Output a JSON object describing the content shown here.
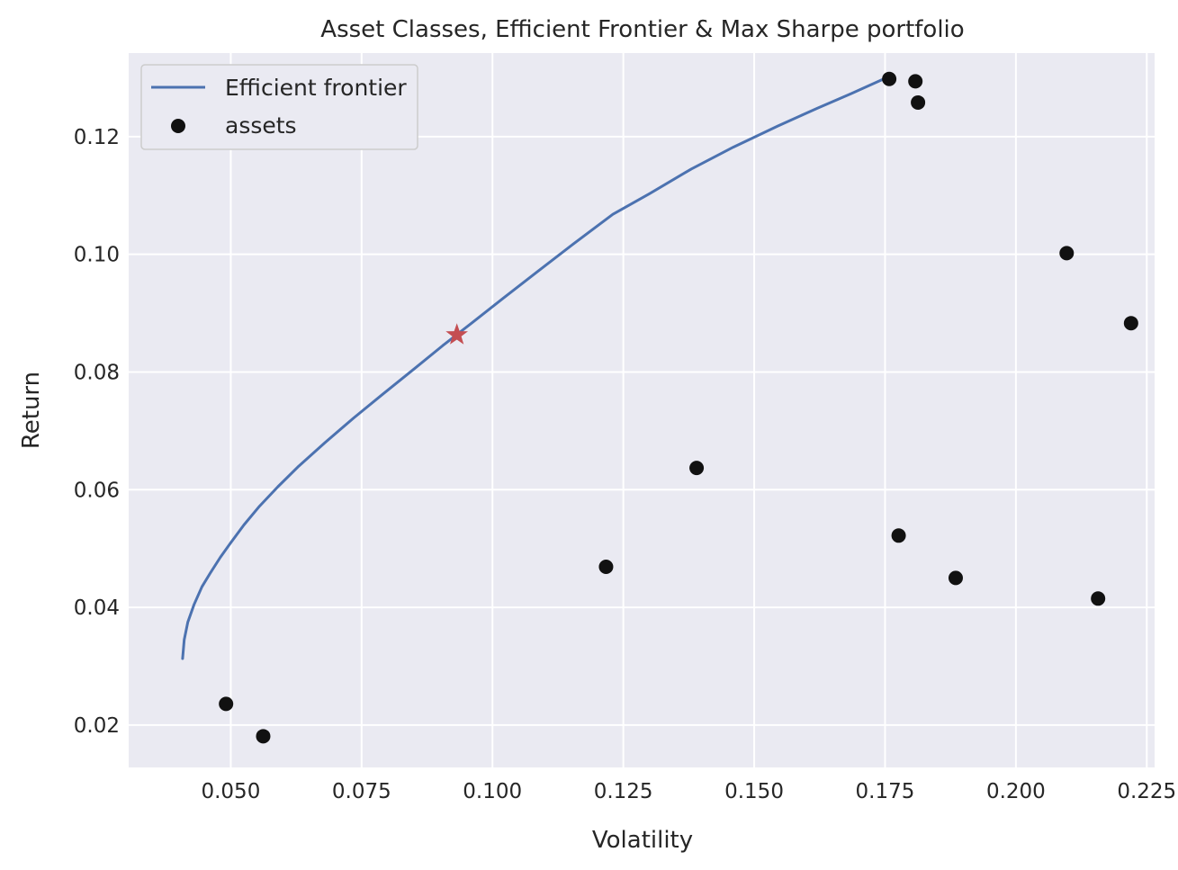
{
  "chart_data": {
    "type": "scatter",
    "title": "Asset Classes, Efficient Frontier & Max Sharpe portfolio",
    "xlabel": "Volatility",
    "ylabel": "Return",
    "xlim": [
      0.0305,
      0.2265
    ],
    "ylim": [
      0.0128,
      0.1342
    ],
    "xticks": [
      0.05,
      0.075,
      0.1,
      0.125,
      0.15,
      0.175,
      0.2,
      0.225
    ],
    "xtick_labels": [
      "0.050",
      "0.075",
      "0.100",
      "0.125",
      "0.150",
      "0.175",
      "0.200",
      "0.225"
    ],
    "yticks": [
      0.02,
      0.04,
      0.06,
      0.08,
      0.1,
      0.12
    ],
    "ytick_labels": [
      "0.02",
      "0.04",
      "0.06",
      "0.08",
      "0.10",
      "0.12"
    ],
    "grid": true,
    "legend_position": "top-left",
    "series": [
      {
        "name": "Efficient frontier",
        "kind": "line",
        "color": "#4c72b0",
        "x": [
          0.0408,
          0.0411,
          0.0418,
          0.043,
          0.0445,
          0.0462,
          0.048,
          0.05,
          0.0525,
          0.0555,
          0.059,
          0.063,
          0.068,
          0.0735,
          0.079,
          0.085,
          0.0905,
          0.096,
          0.102,
          0.1085,
          0.1155,
          0.123,
          0.13,
          0.138,
          0.146,
          0.1545,
          0.162,
          0.1685,
          0.1745
        ],
        "y": [
          0.0313,
          0.0345,
          0.0375,
          0.0405,
          0.0435,
          0.046,
          0.0485,
          0.051,
          0.054,
          0.0572,
          0.0605,
          0.064,
          0.068,
          0.0722,
          0.0762,
          0.0805,
          0.0845,
          0.0883,
          0.0925,
          0.097,
          0.1018,
          0.1068,
          0.1103,
          0.1145,
          0.1182,
          0.1218,
          0.1248,
          0.1273,
          0.1297
        ]
      },
      {
        "name": "assets",
        "kind": "scatter",
        "color": "#111111",
        "points": [
          {
            "x": 0.0491,
            "y": 0.0236
          },
          {
            "x": 0.0562,
            "y": 0.0181
          },
          {
            "x": 0.1217,
            "y": 0.0469
          },
          {
            "x": 0.139,
            "y": 0.0637
          },
          {
            "x": 0.1758,
            "y": 0.1298
          },
          {
            "x": 0.1808,
            "y": 0.1294
          },
          {
            "x": 0.1813,
            "y": 0.1258
          },
          {
            "x": 0.1776,
            "y": 0.0522
          },
          {
            "x": 0.1885,
            "y": 0.045
          },
          {
            "x": 0.2097,
            "y": 0.1002
          },
          {
            "x": 0.2157,
            "y": 0.0415
          },
          {
            "x": 0.222,
            "y": 0.0883
          }
        ]
      },
      {
        "kind": "marker",
        "marker": "star",
        "color": "#c44e52",
        "points": [
          {
            "x": 0.0932,
            "y": 0.0863
          }
        ]
      }
    ],
    "legend": [
      {
        "label": "Efficient frontier",
        "kind": "line",
        "color": "#4c72b0"
      },
      {
        "label": "assets",
        "kind": "dot",
        "color": "#111111"
      }
    ],
    "colors": {
      "plot_background": "#eaeaf2",
      "grid": "#ffffff",
      "text": "#262626"
    }
  }
}
